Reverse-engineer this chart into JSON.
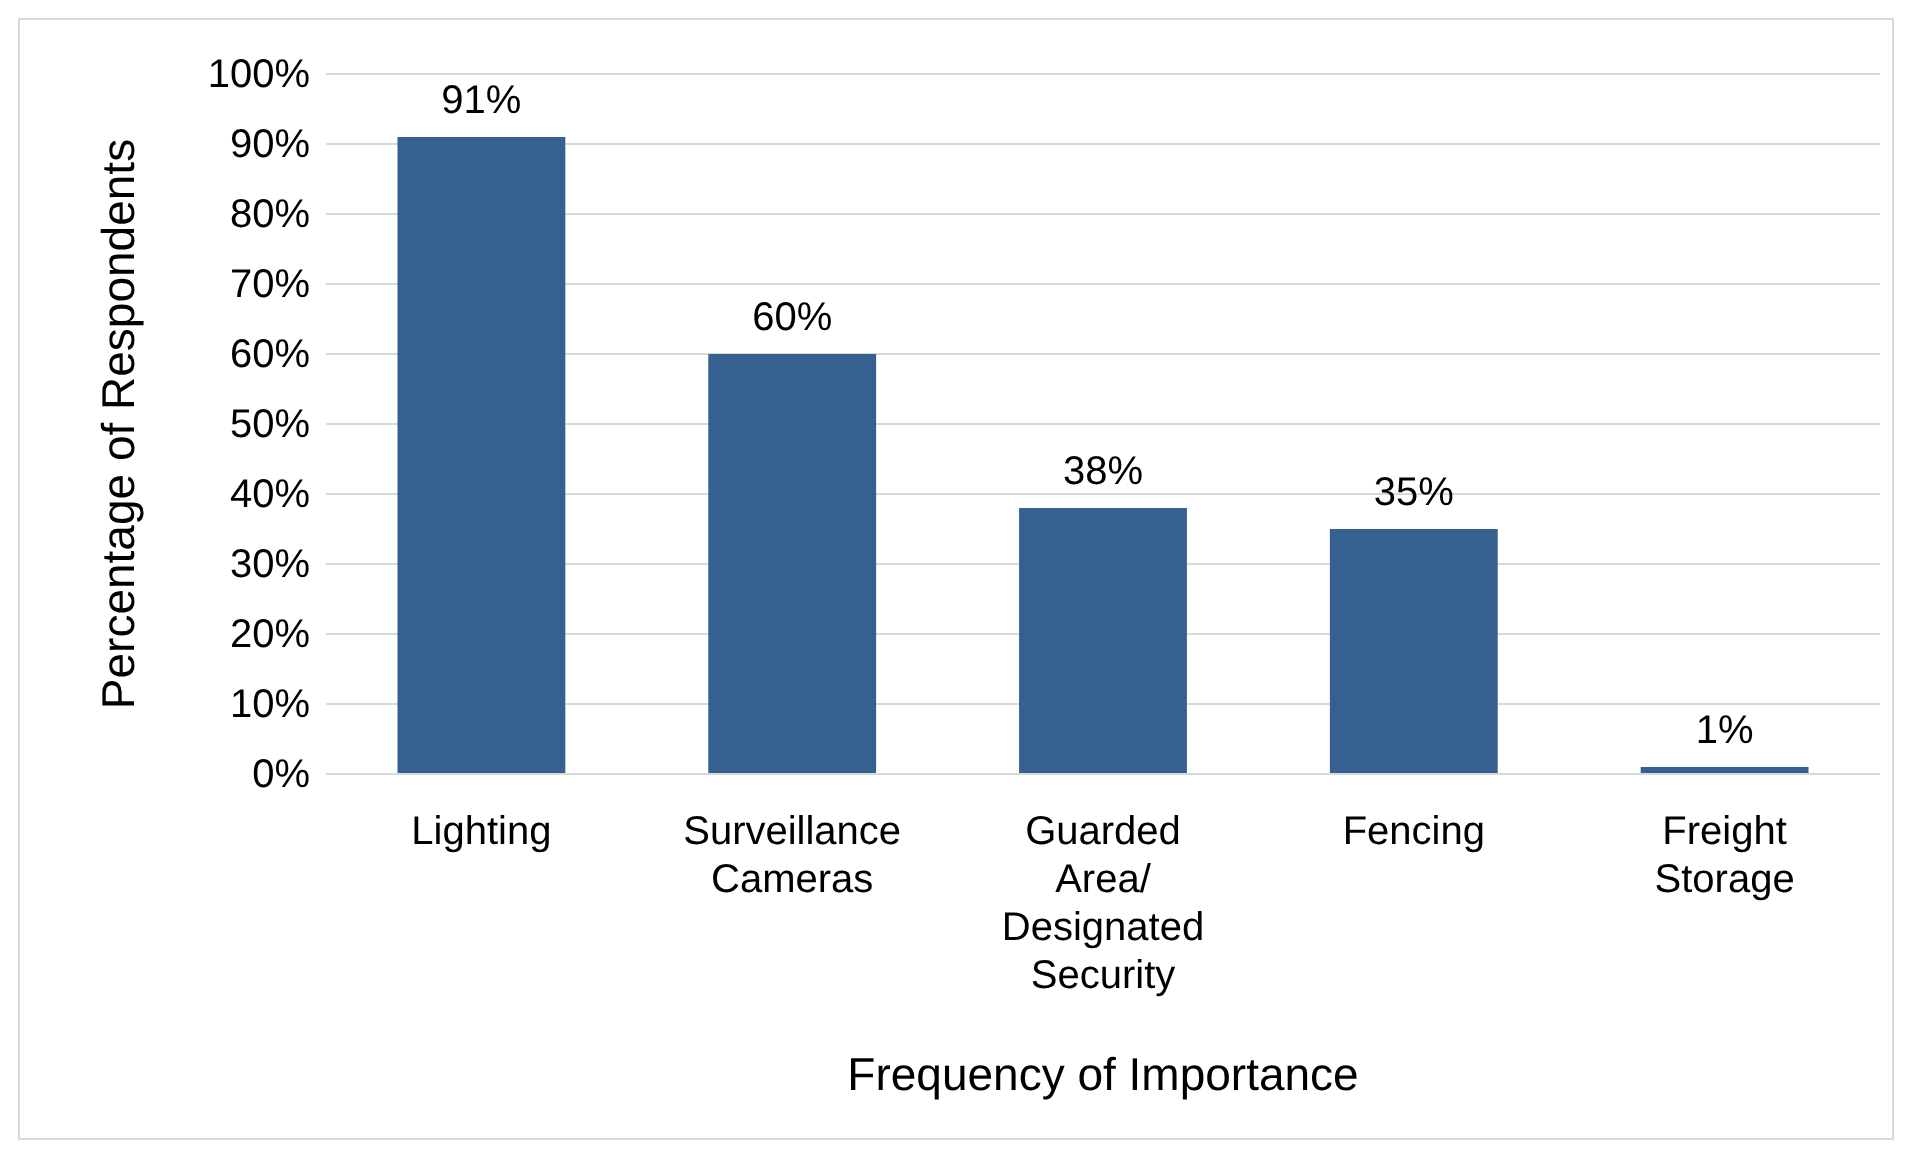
{
  "chart_data": {
    "type": "bar",
    "xlabel": "Frequency of Importance",
    "ylabel": "Percentage of Respondents",
    "categories": [
      "Lighting",
      "Surveillance Cameras",
      "Guarded Area/ Designated Security",
      "Fencing",
      "Freight Storage"
    ],
    "values": [
      91,
      60,
      38,
      35,
      1
    ],
    "color": "#36608f",
    "value_labels": [
      "91%",
      "60%",
      "38%",
      "35%",
      "1%"
    ],
    "ylim": [
      0,
      100
    ],
    "yticks": [
      {
        "value": 0,
        "label": "0%"
      },
      {
        "value": 10,
        "label": "10%"
      },
      {
        "value": 20,
        "label": "20%"
      },
      {
        "value": 30,
        "label": "30%"
      },
      {
        "value": 40,
        "label": "40%"
      },
      {
        "value": 50,
        "label": "50%"
      },
      {
        "value": 60,
        "label": "60%"
      },
      {
        "value": 70,
        "label": "70%"
      },
      {
        "value": 80,
        "label": "80%"
      },
      {
        "value": 90,
        "label": "90%"
      },
      {
        "value": 100,
        "label": "100%"
      }
    ],
    "grid": "y"
  }
}
